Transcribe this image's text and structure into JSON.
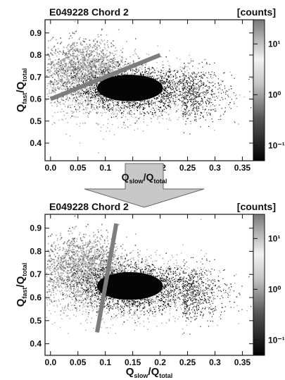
{
  "colors": {
    "cloud_dense": "#050505",
    "cloud_mid": "#6a6a6a",
    "cloud_light": "#a8a8a8",
    "cut_line": "#7d7d7d",
    "arrow_fill": "#c8c8c8"
  },
  "arrow": {
    "label_main": "Q",
    "label_sub1": "slow",
    "label_sep": "/Q",
    "label_sub2": "total"
  },
  "chart_data": [
    {
      "type": "heatmap",
      "title": "E049228  Chord 2",
      "colorbar_label": "[counts]",
      "colorbar_ticks": [
        "10¹",
        "10⁰",
        "10⁻¹"
      ],
      "colorbar_tick_values": [
        10,
        1,
        0.1
      ],
      "colorbar_range": [
        0.05,
        30
      ],
      "colorbar_scale": "log",
      "xlabel": {
        "main": "Q",
        "sub1": "slow",
        "sep": "/Q",
        "sub2": "total"
      },
      "ylabel": {
        "main": "Q",
        "sub1": "fast",
        "sep": "/Q",
        "sub2": "total"
      },
      "show_xlabel": false,
      "xlim": [
        -0.01,
        0.37
      ],
      "ylim": [
        0.32,
        0.96
      ],
      "xticks": [
        "0.0",
        "0.05",
        "0.1",
        "0.15",
        "0.2",
        "0.25",
        "0.3",
        "0.35"
      ],
      "xtick_values": [
        0,
        0.05,
        0.1,
        0.15,
        0.2,
        0.25,
        0.3,
        0.35
      ],
      "yticks": [
        "0.4",
        "0.5",
        "0.6",
        "0.7",
        "0.8",
        "0.9"
      ],
      "ytick_values": [
        0.4,
        0.5,
        0.6,
        0.7,
        0.8,
        0.9
      ],
      "cut_line": {
        "x": [
          0.0,
          0.2
        ],
        "y": [
          0.6,
          0.8
        ]
      },
      "grid": false
    },
    {
      "type": "heatmap",
      "title": "E049228  Chord 2",
      "colorbar_label": "[counts]",
      "colorbar_ticks": [
        "10¹",
        "10⁰",
        "10⁻¹"
      ],
      "colorbar_tick_values": [
        10,
        1,
        0.1
      ],
      "colorbar_range": [
        0.05,
        30
      ],
      "colorbar_scale": "log",
      "xlabel": {
        "main": "Q",
        "sub1": "slow",
        "sep": "/Q",
        "sub2": "total"
      },
      "ylabel": {
        "main": "Q",
        "sub1": "fast",
        "sep": "/Q",
        "sub2": "total"
      },
      "show_xlabel": true,
      "xlim": [
        -0.01,
        0.37
      ],
      "ylim": [
        0.35,
        0.96
      ],
      "xticks": [
        "0.0",
        "0.05",
        "0.1",
        "0.15",
        "0.2",
        "0.25",
        "0.3",
        "0.35"
      ],
      "xtick_values": [
        0,
        0.05,
        0.1,
        0.15,
        0.2,
        0.25,
        0.3,
        0.35
      ],
      "yticks": [
        "0.4",
        "0.5",
        "0.6",
        "0.7",
        "0.8",
        "0.9"
      ],
      "ytick_values": [
        0.4,
        0.5,
        0.6,
        0.7,
        0.8,
        0.9
      ],
      "cut_line": {
        "x": [
          0.085,
          0.12
        ],
        "y": [
          0.45,
          0.92
        ]
      },
      "grid": false
    }
  ]
}
